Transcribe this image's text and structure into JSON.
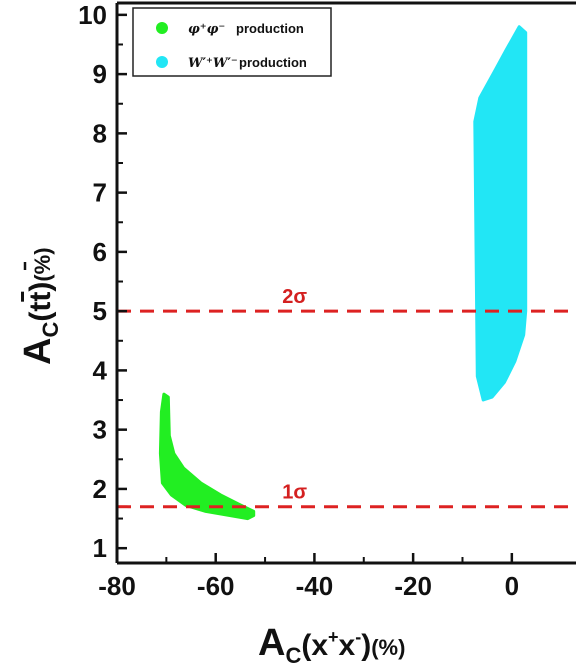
{
  "chart_data": {
    "type": "area",
    "x_axis": {
      "label_main": "A",
      "label_sub": "C",
      "label_paren": "(x",
      "label_sup1": "+",
      "label_mid": "x",
      "label_sup2": "-",
      "label_close": ")",
      "label_unit": "(%)",
      "ticks": [
        -80,
        -60,
        -40,
        -20,
        0
      ],
      "tick_labels": [
        "-80",
        "-60",
        "-40",
        "-20",
        "0"
      ],
      "range": [
        -80,
        13
      ]
    },
    "y_axis": {
      "label_main": "A",
      "label_sub": "C",
      "label_rest": "(t",
      "label_tbar": "t",
      "label_close": ")",
      "label_unit": "(%)",
      "ticks": [
        1,
        2,
        3,
        4,
        5,
        6,
        7,
        8,
        9,
        10
      ],
      "tick_labels": [
        "1",
        "2",
        "3",
        "4",
        "5",
        "6",
        "7",
        "8",
        "9",
        "10"
      ],
      "range": [
        0.75,
        10.2
      ]
    },
    "series": [
      {
        "name_symbol": "φ⁺φ⁻",
        "name_suffix": "production",
        "color": "#22ee22",
        "region": [
          [
            -70.5,
            3.6
          ],
          [
            -69.6,
            3.55
          ],
          [
            -69.4,
            2.9
          ],
          [
            -68.5,
            2.6
          ],
          [
            -66.5,
            2.35
          ],
          [
            -63,
            2.1
          ],
          [
            -59,
            1.9
          ],
          [
            -55.5,
            1.75
          ],
          [
            -52.3,
            1.62
          ],
          [
            -52.3,
            1.55
          ],
          [
            -53.5,
            1.5
          ],
          [
            -57,
            1.55
          ],
          [
            -62,
            1.62
          ],
          [
            -66,
            1.72
          ],
          [
            -69,
            1.9
          ],
          [
            -70.8,
            2.1
          ],
          [
            -71.2,
            2.6
          ],
          [
            -71.0,
            3.3
          ]
        ]
      },
      {
        "name_symbol": "W′⁺W′⁻",
        "name_suffix": "production",
        "color": "#22e6f5",
        "region": [
          [
            1.5,
            9.8
          ],
          [
            2.8,
            9.7
          ],
          [
            2.8,
            5.0
          ],
          [
            2.4,
            4.6
          ],
          [
            0.6,
            4.15
          ],
          [
            -1.5,
            3.8
          ],
          [
            -4,
            3.55
          ],
          [
            -5.8,
            3.5
          ],
          [
            -7.0,
            3.9
          ],
          [
            -7.5,
            8.2
          ],
          [
            -6.5,
            8.6
          ],
          [
            -3.5,
            9.05
          ],
          [
            -1.2,
            9.4
          ]
        ]
      }
    ],
    "reference_lines": [
      {
        "y": 5.0,
        "label": "2σ",
        "color": "#dd2222"
      },
      {
        "y": 1.7,
        "label": "1σ",
        "color": "#dd2222"
      }
    ],
    "legend_position": "top-left",
    "grid": false
  }
}
